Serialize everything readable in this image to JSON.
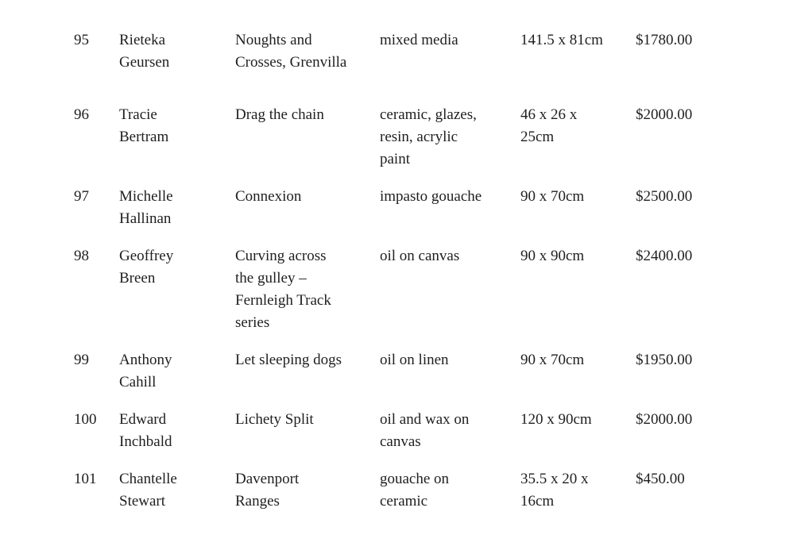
{
  "page": {
    "background_color": "#ffffff",
    "text_color": "#1f1f1f",
    "type": "art-exhibition-price-list"
  },
  "table": {
    "columns": [
      "number",
      "artist",
      "title",
      "medium",
      "dimensions",
      "price"
    ],
    "rows": [
      {
        "number": "95",
        "artist": "Rieteka\nGeursen",
        "title": "Noughts and\nCrosses, Grenvilla",
        "medium": "mixed media",
        "dimensions": "141.5 x 81cm",
        "price": "$1780.00"
      },
      {
        "number": "96",
        "artist": "Tracie\nBertram",
        "title": "Drag the chain",
        "medium": "ceramic, glazes,\nresin, acrylic\npaint",
        "dimensions": "46 x 26 x\n25cm",
        "price": "$2000.00"
      },
      {
        "number": "97",
        "artist": "Michelle\nHallinan",
        "title": "Connexion",
        "medium": "impasto gouache",
        "dimensions": "90 x 70cm",
        "price": "$2500.00"
      },
      {
        "number": "98",
        "artist": "Geoffrey\nBreen",
        "title": "Curving across\nthe gulley –\nFernleigh Track\nseries",
        "medium": "oil on canvas",
        "dimensions": "90 x 90cm",
        "price": "$2400.00"
      },
      {
        "number": "99",
        "artist": "Anthony\nCahill",
        "title": "Let sleeping dogs",
        "medium": "oil on linen",
        "dimensions": "90 x 70cm",
        "price": "$1950.00"
      },
      {
        "number": "100",
        "artist": "Edward\nInchbald",
        "title": "Lichety Split",
        "medium": "oil and wax on\ncanvas",
        "dimensions": "120 x 90cm",
        "price": "$2000.00"
      },
      {
        "number": "101",
        "artist": "Chantelle\nStewart",
        "title": "Davenport\nRanges",
        "medium": "gouache on\nceramic",
        "dimensions": "35.5 x 20 x\n16cm",
        "price": "$450.00"
      }
    ]
  }
}
